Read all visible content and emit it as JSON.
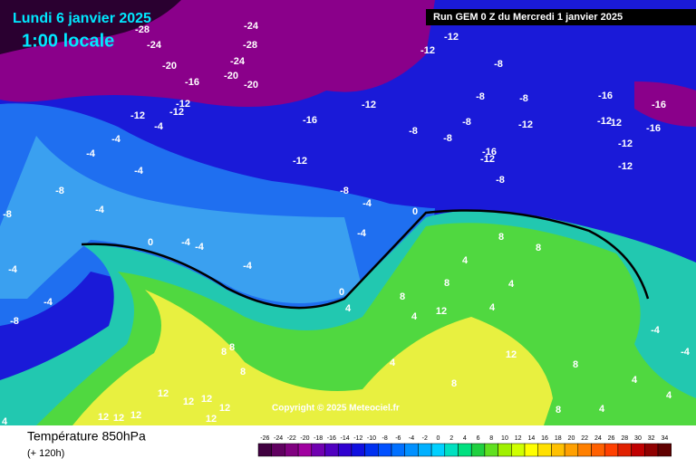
{
  "header": {
    "date": "Lundi 6 janvier 2025",
    "time": "1:00 locale",
    "run": "Run GEM 0 Z du Mercredi 1 janvier 2025"
  },
  "map_labels": [
    -28,
    -24,
    -24,
    -28,
    -20,
    -24,
    -20,
    -20,
    -16,
    -12,
    -12,
    -12,
    -4,
    -12,
    -12,
    -8,
    -8,
    -8,
    -16,
    -16,
    -12,
    -12,
    -16,
    -8,
    -12,
    -12,
    -16,
    -8,
    -8,
    -12,
    -16,
    -12,
    -12,
    -12,
    -8,
    -8,
    -4,
    -4,
    -4,
    -8,
    -4,
    -8,
    -4,
    0,
    -4,
    0,
    -4,
    -4,
    -4,
    -4,
    -4,
    -8,
    0,
    4,
    8,
    4,
    8,
    8,
    8,
    4,
    12,
    4,
    4,
    8,
    8,
    8,
    4,
    12,
    8,
    12,
    12,
    12,
    12,
    12,
    12,
    12,
    12,
    4,
    8,
    4,
    -4,
    -4,
    8,
    4,
    4
  ],
  "copyright": "Copyright © 2025 Meteociel.fr",
  "footer": {
    "title": "Température 850hPa",
    "subtitle": "(+ 120h)"
  },
  "legend": {
    "labels": [
      -26,
      -24,
      -22,
      -20,
      -18,
      -16,
      -14,
      -12,
      -10,
      -8,
      -6,
      -4,
      -2,
      0,
      2,
      4,
      6,
      8,
      10,
      12,
      14,
      16,
      18,
      20,
      22,
      24,
      26,
      28,
      30,
      32,
      34
    ],
    "colors": [
      "#400040",
      "#600060",
      "#800080",
      "#a000a0",
      "#7000b0",
      "#5000c0",
      "#3000d0",
      "#1010e0",
      "#0030f0",
      "#0050ff",
      "#0070ff",
      "#0090ff",
      "#00b0ff",
      "#00d0ff",
      "#00e0c0",
      "#00e080",
      "#20d040",
      "#60e020",
      "#a0f000",
      "#d0ff00",
      "#ffff00",
      "#ffe000",
      "#ffc000",
      "#ffa000",
      "#ff8000",
      "#ff6000",
      "#ff4000",
      "#e02000",
      "#c00000",
      "#900000",
      "#600000"
    ]
  }
}
